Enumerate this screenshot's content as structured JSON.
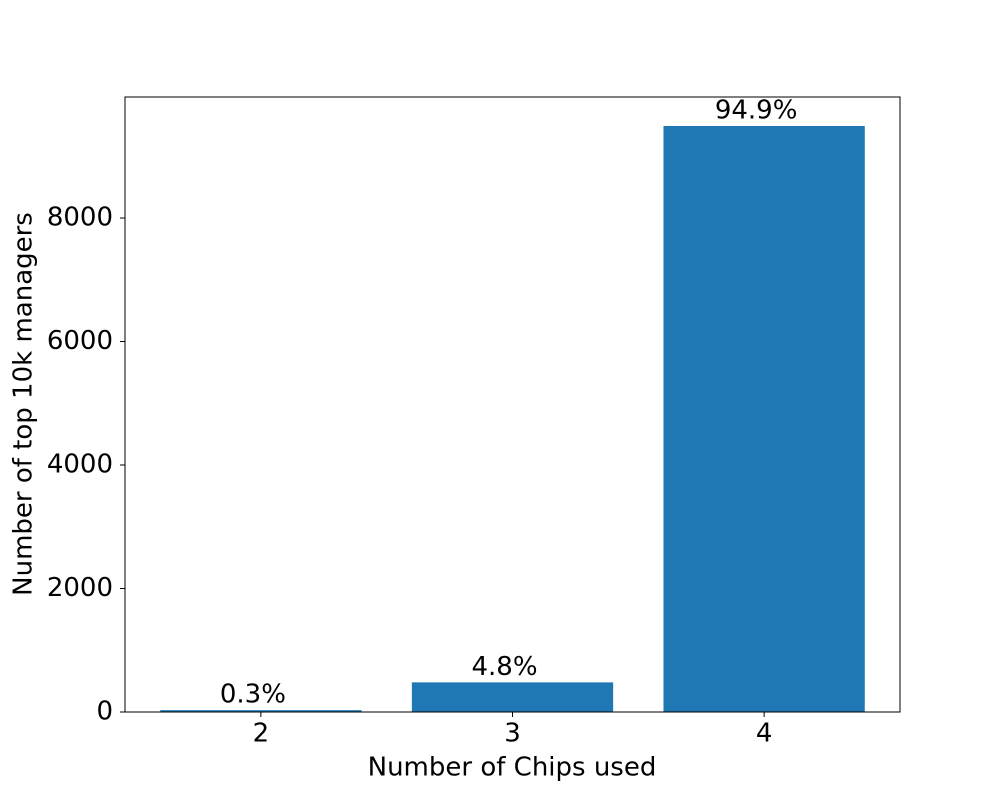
{
  "chart_data": {
    "type": "bar",
    "x_label": "Number of Chips used",
    "y_label": "Number of top 10k managers",
    "categories": [
      "2",
      "3",
      "4"
    ],
    "values": [
      30,
      480,
      9490
    ],
    "value_labels": [
      "0.3%",
      "4.8%",
      "94.9%"
    ],
    "color": "#1f77b4",
    "ylim": [
      0,
      9960
    ],
    "yticks": [
      0,
      2000,
      4000,
      6000,
      8000
    ],
    "grid": false
  }
}
